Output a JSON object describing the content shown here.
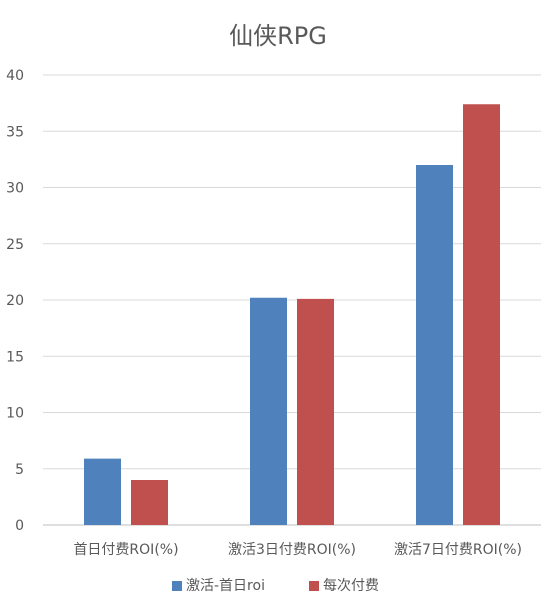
{
  "chart_data": {
    "type": "bar",
    "title": "仙侠RPG",
    "categories": [
      "首日付费ROI(%)",
      "激活3日付费ROI(%)",
      "激活7日付费ROI(%)"
    ],
    "series": [
      {
        "name": "激活-首日roi",
        "color": "#4f81bd",
        "values": [
          5.9,
          20.2,
          32.0
        ]
      },
      {
        "name": "每次付费",
        "color": "#c0504d",
        "values": [
          4.0,
          20.1,
          37.4
        ]
      }
    ],
    "ylim": [
      0,
      40
    ],
    "yticks": [
      0,
      5,
      10,
      15,
      20,
      25,
      30,
      35,
      40
    ],
    "grid": true,
    "legend": "bottom"
  }
}
